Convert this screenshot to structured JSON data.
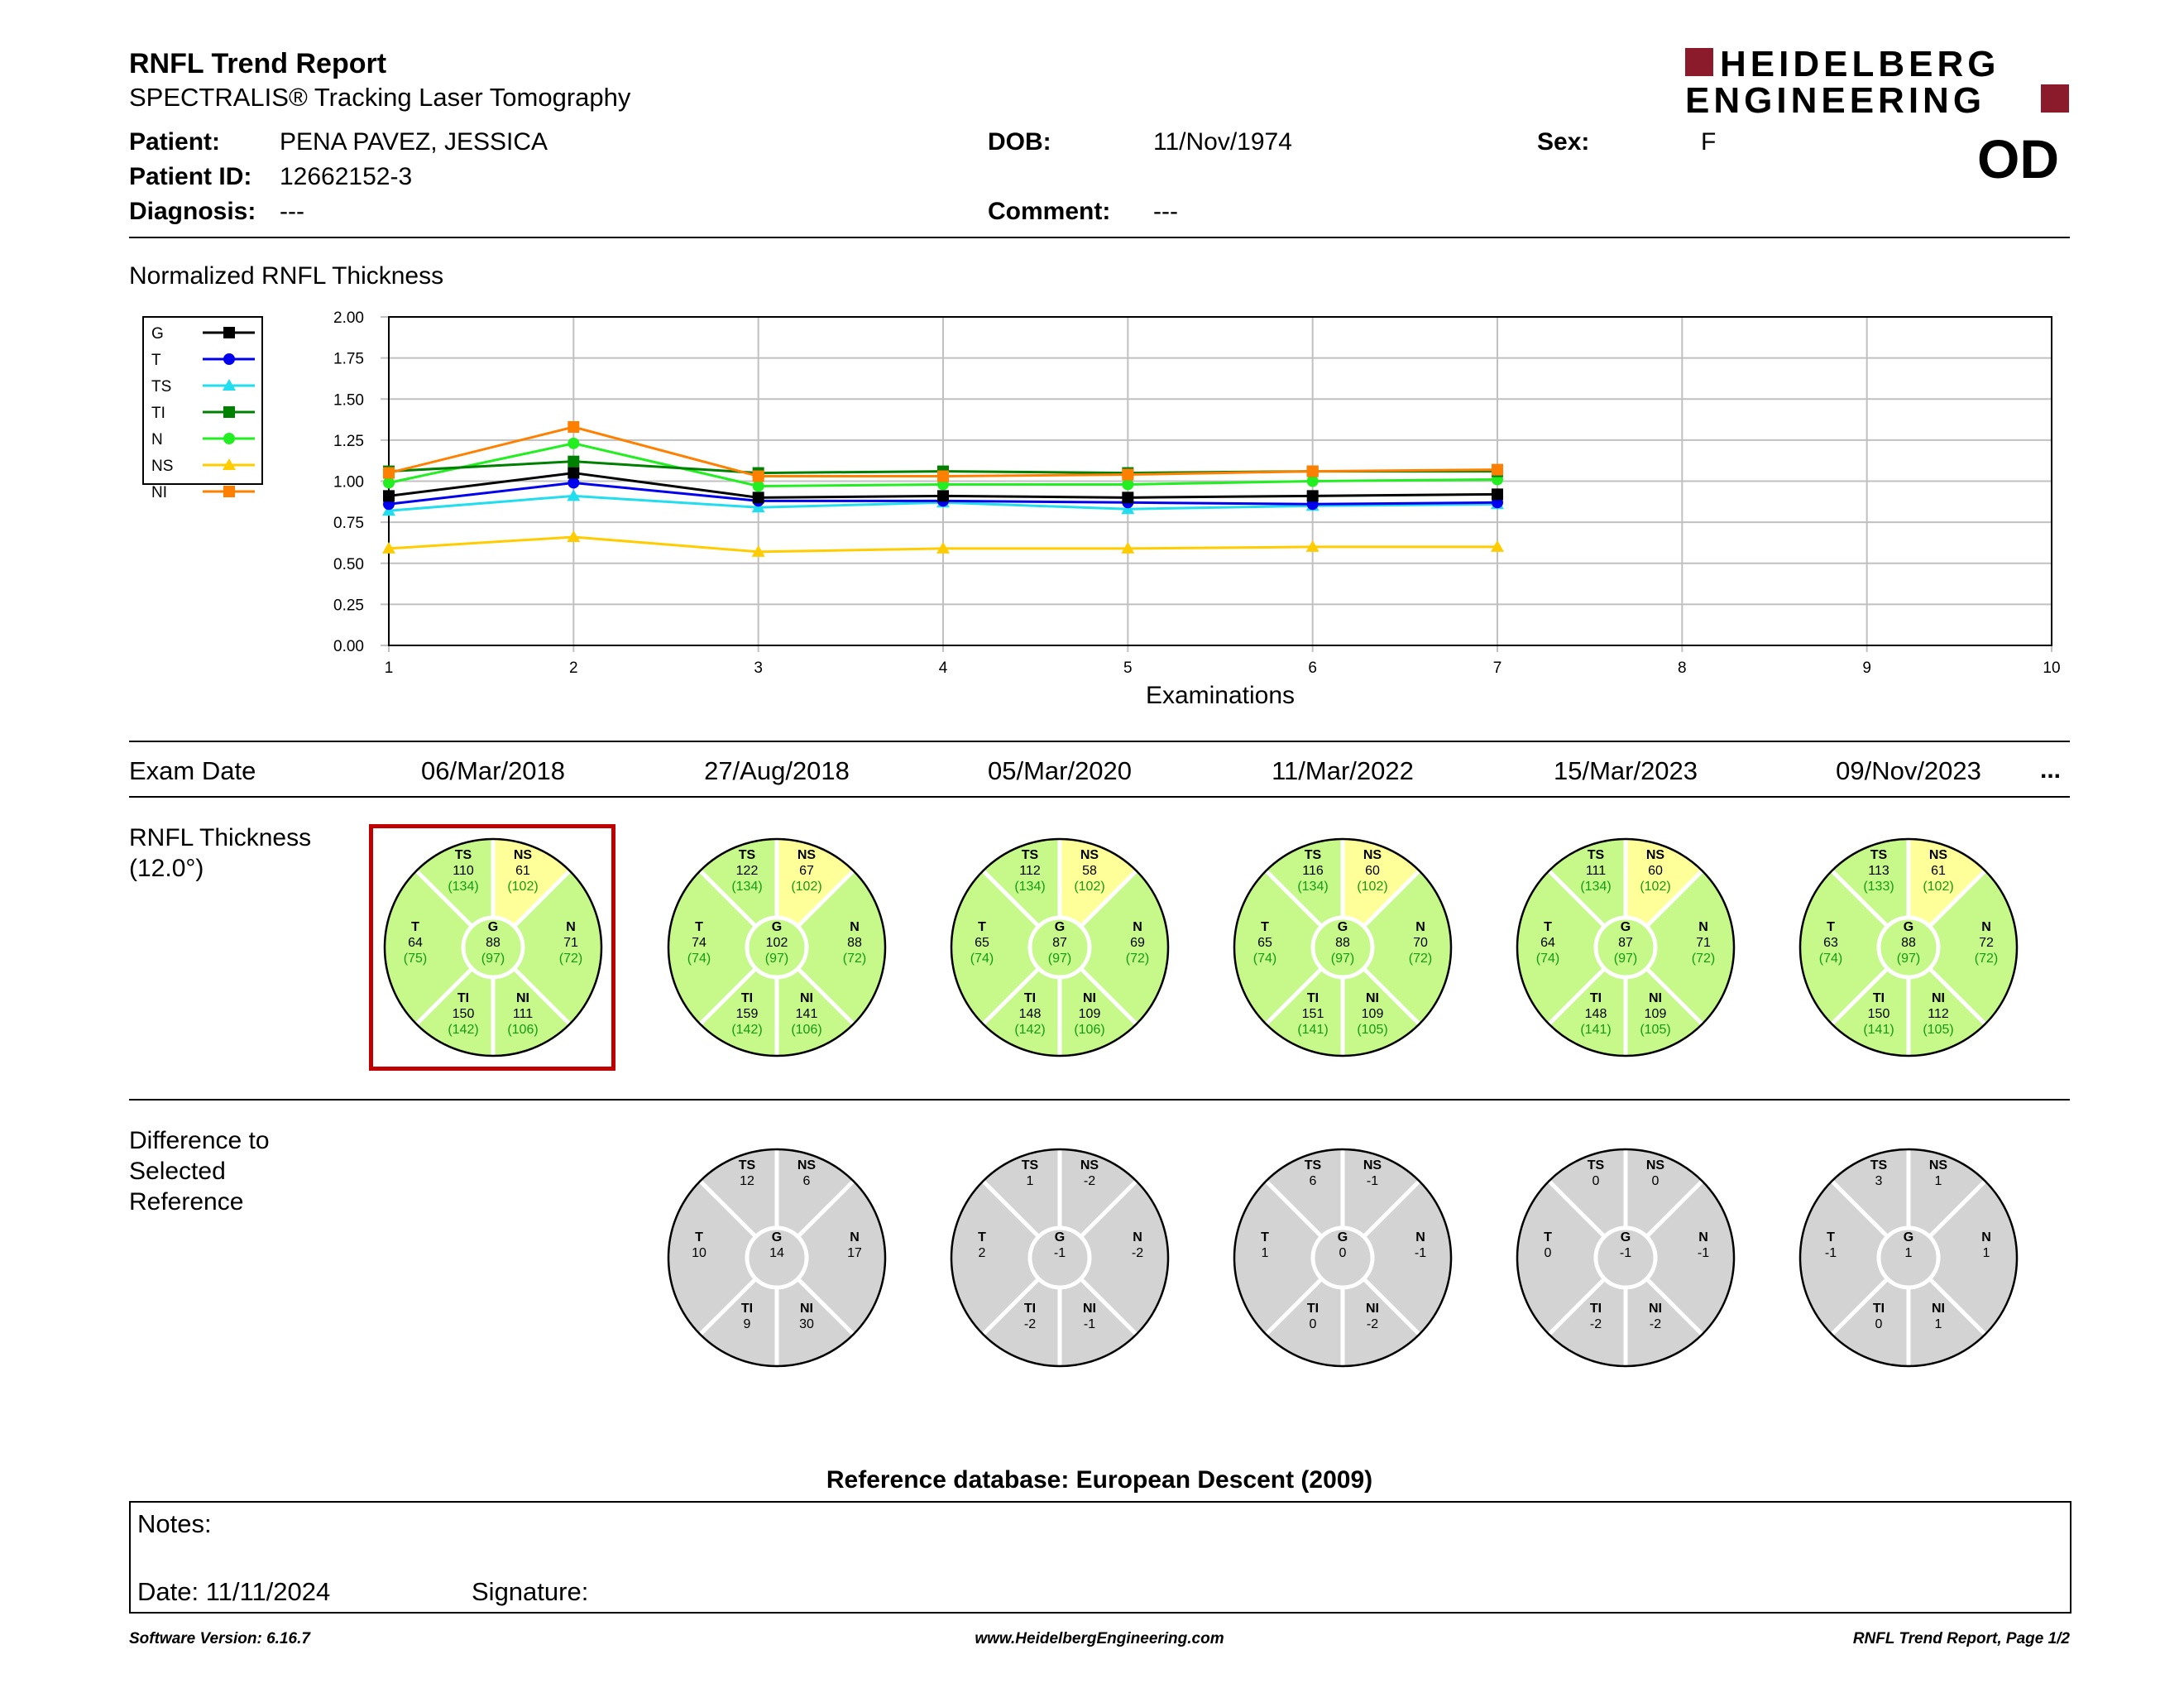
{
  "header": {
    "title": "RNFL Trend Report",
    "subtitle": "SPECTRALIS® Tracking Laser Tomography",
    "logo_line1": "HEIDELBERG",
    "logo_line2": "ENGINEERING",
    "eye": "OD"
  },
  "patient": {
    "patient_label": "Patient:",
    "patient_value": "PENA PAVEZ, JESSICA",
    "id_label": "Patient ID:",
    "id_value": "12662152-3",
    "diagnosis_label": "Diagnosis:",
    "diagnosis_value": "---",
    "dob_label": "DOB:",
    "dob_value": "11/Nov/1974",
    "comment_label": "Comment:",
    "comment_value": "---",
    "sex_label": "Sex:",
    "sex_value": "F"
  },
  "chart_data": {
    "type": "line",
    "title": "Normalized RNFL Thickness",
    "xlabel": "Examinations",
    "ylabel": "",
    "x": [
      1,
      2,
      3,
      4,
      5,
      6,
      7
    ],
    "xlim": [
      1,
      10
    ],
    "ylim": [
      0,
      2
    ],
    "xticks": [
      "1",
      "2",
      "3",
      "4",
      "5",
      "6",
      "7",
      "8",
      "9",
      "10"
    ],
    "yticks": [
      "0.00",
      "0.25",
      "0.50",
      "0.75",
      "1.00",
      "1.25",
      "1.50",
      "1.75",
      "2.00"
    ],
    "grid": true,
    "legend_position": "top-left",
    "series": [
      {
        "name": "G",
        "color": "#000000",
        "marker": "square",
        "values": [
          0.91,
          1.05,
          0.9,
          0.91,
          0.9,
          0.91,
          0.92
        ]
      },
      {
        "name": "T",
        "color": "#0000ee",
        "marker": "circle",
        "values": [
          0.86,
          0.99,
          0.88,
          0.88,
          0.87,
          0.86,
          0.87
        ]
      },
      {
        "name": "TS",
        "color": "#22ddee",
        "marker": "triangle",
        "values": [
          0.82,
          0.91,
          0.84,
          0.87,
          0.83,
          0.85,
          0.86
        ]
      },
      {
        "name": "TI",
        "color": "#008000",
        "marker": "square",
        "values": [
          1.06,
          1.12,
          1.05,
          1.06,
          1.05,
          1.06,
          1.06
        ]
      },
      {
        "name": "N",
        "color": "#22ee22",
        "marker": "circle",
        "values": [
          0.99,
          1.23,
          0.97,
          0.98,
          0.98,
          1.0,
          1.01
        ]
      },
      {
        "name": "NS",
        "color": "#ffcc00",
        "marker": "triangle",
        "values": [
          0.59,
          0.66,
          0.57,
          0.59,
          0.59,
          0.6,
          0.6
        ]
      },
      {
        "name": "NI",
        "color": "#ff8000",
        "marker": "square",
        "values": [
          1.05,
          1.33,
          1.03,
          1.03,
          1.04,
          1.06,
          1.07
        ]
      }
    ]
  },
  "exams": {
    "row_label": "Exam Date",
    "more": "...",
    "dates": [
      "06/Mar/2018",
      "27/Aug/2018",
      "05/Mar/2020",
      "11/Mar/2022",
      "15/Mar/2023",
      "09/Nov/2023"
    ]
  },
  "thickness": {
    "label_line1": "RNFL Thickness",
    "label_line2": "(12.0°)",
    "selected_index": 0,
    "colors": {
      "normal": "#c6f88a",
      "borderline": "#ffff99",
      "selected_frame": "#c00000"
    },
    "exams": [
      {
        "TS": [
          "110",
          "(134)"
        ],
        "NS": [
          "61",
          "(102)"
        ],
        "T": [
          "64",
          "(75)"
        ],
        "G": [
          "88",
          "(97)"
        ],
        "N": [
          "71",
          "(72)"
        ],
        "TI": [
          "150",
          "(142)"
        ],
        "NI": [
          "111",
          "(106)"
        ]
      },
      {
        "TS": [
          "122",
          "(134)"
        ],
        "NS": [
          "67",
          "(102)"
        ],
        "T": [
          "74",
          "(74)"
        ],
        "G": [
          "102",
          "(97)"
        ],
        "N": [
          "88",
          "(72)"
        ],
        "TI": [
          "159",
          "(142)"
        ],
        "NI": [
          "141",
          "(106)"
        ]
      },
      {
        "TS": [
          "112",
          "(134)"
        ],
        "NS": [
          "58",
          "(102)"
        ],
        "T": [
          "65",
          "(74)"
        ],
        "G": [
          "87",
          "(97)"
        ],
        "N": [
          "69",
          "(72)"
        ],
        "TI": [
          "148",
          "(142)"
        ],
        "NI": [
          "109",
          "(106)"
        ]
      },
      {
        "TS": [
          "116",
          "(134)"
        ],
        "NS": [
          "60",
          "(102)"
        ],
        "T": [
          "65",
          "(74)"
        ],
        "G": [
          "88",
          "(97)"
        ],
        "N": [
          "70",
          "(72)"
        ],
        "TI": [
          "151",
          "(141)"
        ],
        "NI": [
          "109",
          "(105)"
        ]
      },
      {
        "TS": [
          "111",
          "(134)"
        ],
        "NS": [
          "60",
          "(102)"
        ],
        "T": [
          "64",
          "(74)"
        ],
        "G": [
          "87",
          "(97)"
        ],
        "N": [
          "71",
          "(72)"
        ],
        "TI": [
          "148",
          "(141)"
        ],
        "NI": [
          "109",
          "(105)"
        ]
      },
      {
        "TS": [
          "113",
          "(133)"
        ],
        "NS": [
          "61",
          "(102)"
        ],
        "T": [
          "63",
          "(74)"
        ],
        "G": [
          "88",
          "(97)"
        ],
        "N": [
          "72",
          "(72)"
        ],
        "TI": [
          "150",
          "(141)"
        ],
        "NI": [
          "112",
          "(105)"
        ]
      }
    ]
  },
  "difference": {
    "label_line1": "Difference to",
    "label_line2": "Selected",
    "label_line3": "Reference",
    "exams": [
      {
        "TS": "12",
        "NS": "6",
        "T": "10",
        "G": "14",
        "N": "17",
        "TI": "9",
        "NI": "30"
      },
      {
        "TS": "1",
        "NS": "-2",
        "T": "2",
        "G": "-1",
        "N": "-2",
        "TI": "-2",
        "NI": "-1"
      },
      {
        "TS": "6",
        "NS": "-1",
        "T": "1",
        "G": "0",
        "N": "-1",
        "TI": "0",
        "NI": "-2"
      },
      {
        "TS": "0",
        "NS": "0",
        "T": "0",
        "G": "-1",
        "N": "-1",
        "TI": "-2",
        "NI": "-2"
      },
      {
        "TS": "3",
        "NS": "1",
        "T": "-1",
        "G": "1",
        "N": "1",
        "TI": "0",
        "NI": "1"
      }
    ]
  },
  "reference_db": "Reference database: European Descent (2009)",
  "notes": {
    "notes_label": "Notes:",
    "date_label": "Date: 11/11/2024",
    "signature_label": "Signature:"
  },
  "footer": {
    "software": "Software Version: 6.16.7",
    "website": "www.HeidelbergEngineering.com",
    "page": "RNFL Trend Report, Page 1/2"
  }
}
